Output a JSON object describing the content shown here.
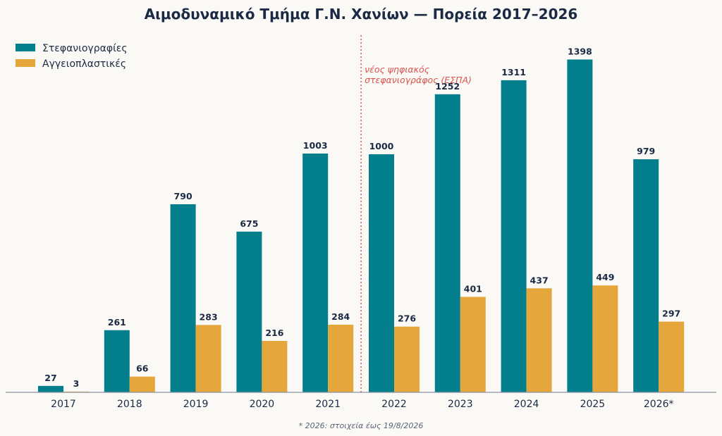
{
  "chart_data": {
    "type": "bar",
    "title": "Αιμοδυναμικό Τμήμα Γ.Ν. Χανίων — Πορεία 2017–2026",
    "categories": [
      "2017",
      "2018",
      "2019",
      "2020",
      "2021",
      "2022",
      "2023",
      "2024",
      "2025",
      "2026*"
    ],
    "series": [
      {
        "name": "Στεφανιογραφίες",
        "color": "#037e8c",
        "values": [
          27,
          261,
          790,
          675,
          1003,
          1000,
          1252,
          1311,
          1398,
          979
        ]
      },
      {
        "name": "Αγγειοπλαστικές",
        "color": "#e5a63b",
        "values": [
          3,
          66,
          283,
          216,
          284,
          276,
          401,
          437,
          449,
          297
        ]
      }
    ],
    "ylim": [
      0,
      1500
    ],
    "grid": false,
    "legend": "top-left",
    "annotation": {
      "after_category": "2021",
      "lines": [
        "νέος ψηφιακός",
        "στεφανιογράφος (ΕΣΠΑ)"
      ],
      "color": "#d9534f"
    },
    "footnote": "* 2026: στοιχεία έως 19/8/2026"
  }
}
